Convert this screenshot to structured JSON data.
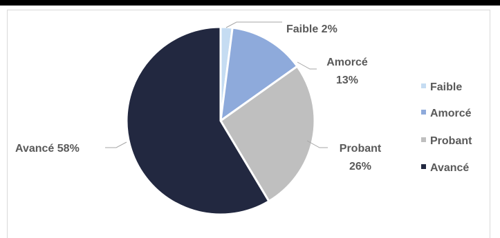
{
  "chart_data": {
    "type": "pie",
    "categories": [
      "Faible",
      "Amorcé",
      "Probant",
      "Avancé"
    ],
    "values": [
      2,
      13,
      26,
      58
    ],
    "colors": [
      "#c5dcf2",
      "#8eaadb",
      "#bfbfbf",
      "#222840"
    ],
    "data_labels": [
      "Faible 2%",
      "Amorcé 13%",
      "Probant 26%",
      "Avancé 58%"
    ],
    "legend": [
      "Faible",
      "Amorcé",
      "Probant",
      "Avancé"
    ],
    "legend_position": "right",
    "title": ""
  }
}
